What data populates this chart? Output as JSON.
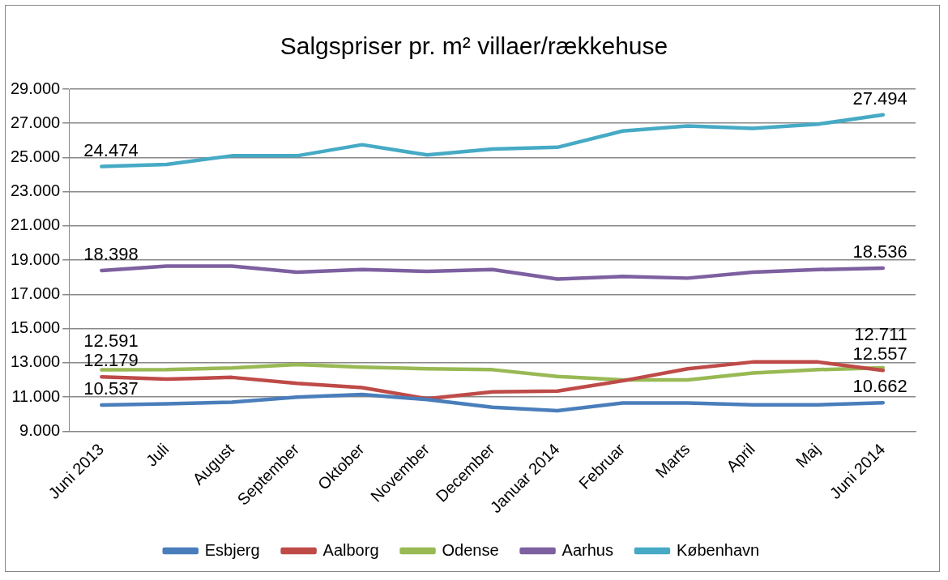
{
  "chart_data": {
    "type": "line",
    "title": "Salgspriser pr. m² villaer/rækkehuse",
    "categories": [
      "Juni 2013",
      "Juli",
      "August",
      "September",
      "Oktober",
      "November",
      "December",
      "Januar 2014",
      "Februar",
      "Marts",
      "April",
      "Maj",
      "Juni 2014"
    ],
    "series": [
      {
        "name": "Esbjerg",
        "color": "#4a7ebb",
        "values": [
          10537,
          10600,
          10700,
          11000,
          11150,
          10850,
          10400,
          10200,
          10650,
          10650,
          10550,
          10550,
          10662
        ],
        "value_labels": [
          "10.537",
          null,
          null,
          null,
          null,
          null,
          null,
          null,
          null,
          null,
          null,
          null,
          "10.662"
        ]
      },
      {
        "name": "Aalborg",
        "color": "#be4b48",
        "values": [
          12179,
          12050,
          12150,
          11800,
          11550,
          10900,
          11300,
          11350,
          11950,
          12650,
          13050,
          13050,
          12557
        ],
        "value_labels": [
          "12.179",
          null,
          null,
          null,
          null,
          null,
          null,
          null,
          null,
          null,
          null,
          null,
          "12.557"
        ]
      },
      {
        "name": "Odense",
        "color": "#98b954",
        "values": [
          12591,
          12600,
          12700,
          12900,
          12750,
          12650,
          12600,
          12200,
          12000,
          12000,
          12400,
          12600,
          12711
        ],
        "value_labels": [
          "12.591",
          null,
          null,
          null,
          null,
          null,
          null,
          null,
          null,
          null,
          null,
          null,
          "12.711"
        ]
      },
      {
        "name": "Aarhus",
        "color": "#7d60a0",
        "values": [
          18398,
          18650,
          18650,
          18300,
          18450,
          18350,
          18450,
          17900,
          18050,
          17950,
          18300,
          18450,
          18536
        ],
        "value_labels": [
          "18.398",
          null,
          null,
          null,
          null,
          null,
          null,
          null,
          null,
          null,
          null,
          null,
          "18.536"
        ]
      },
      {
        "name": "København",
        "color": "#46aac5",
        "values": [
          24474,
          24600,
          25100,
          25100,
          25750,
          25150,
          25500,
          25600,
          26550,
          26850,
          26700,
          26950,
          27494
        ],
        "value_labels": [
          "24.474",
          null,
          null,
          null,
          null,
          null,
          null,
          null,
          null,
          null,
          null,
          null,
          "27.494"
        ]
      }
    ],
    "ylim": [
      9000,
      29000
    ],
    "yticks": [
      {
        "value": 9000,
        "label": "9.000"
      },
      {
        "value": 11000,
        "label": "11.000"
      },
      {
        "value": 13000,
        "label": "13.000"
      },
      {
        "value": 15000,
        "label": "15.000"
      },
      {
        "value": 17000,
        "label": "17.000"
      },
      {
        "value": 19000,
        "label": "19.000"
      },
      {
        "value": 21000,
        "label": "21.000"
      },
      {
        "value": 23000,
        "label": "23.000"
      },
      {
        "value": 25000,
        "label": "25.000"
      },
      {
        "value": 27000,
        "label": "27.000"
      },
      {
        "value": 29000,
        "label": "29.000"
      }
    ],
    "grid": "y",
    "legend": "bottom",
    "marker": "none",
    "line_style": "solid"
  }
}
